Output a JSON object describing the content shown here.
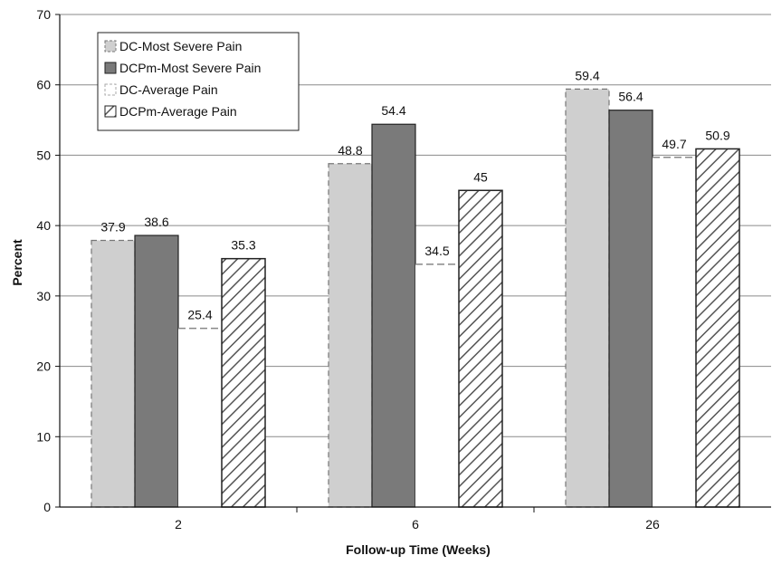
{
  "chart_data": {
    "type": "bar",
    "title": "",
    "xlabel": "Follow-up Time (Weeks)",
    "ylabel": "Percent",
    "categories": [
      "2",
      "6",
      "26"
    ],
    "ylim": [
      0,
      70
    ],
    "yticks": [
      "0",
      "10",
      "20",
      "30",
      "40",
      "50",
      "60",
      "70"
    ],
    "grid": true,
    "legend_position": "top-left",
    "series": [
      {
        "name": "DC-Most Severe Pain",
        "values": [
          37.9,
          48.8,
          59.4
        ],
        "labels": [
          "37.9",
          "48.8",
          "59.4"
        ],
        "color": "#cfcfcf",
        "style": "light-solid-dashed-edge"
      },
      {
        "name": "DCPm-Most Severe Pain",
        "values": [
          38.6,
          54.4,
          56.4
        ],
        "labels": [
          "38.6",
          "54.4",
          "56.4"
        ],
        "color": "#7a7a7a",
        "style": "dark-solid"
      },
      {
        "name": "DC-Average Pain",
        "values": [
          25.4,
          34.5,
          49.7
        ],
        "labels": [
          "25.4",
          "34.5",
          "49.7"
        ],
        "color": "#ffffff",
        "style": "white-dashed-top"
      },
      {
        "name": "DCPm-Average Pain",
        "values": [
          35.3,
          45,
          50.9
        ],
        "labels": [
          "35.3",
          "45",
          "50.9"
        ],
        "color": "#ffffff",
        "style": "hatched"
      }
    ]
  }
}
